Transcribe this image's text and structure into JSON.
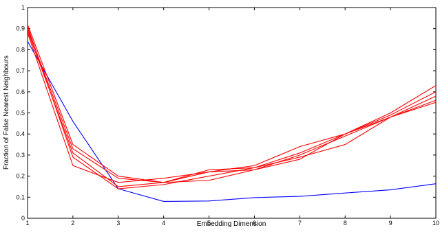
{
  "chart_data": {
    "type": "line",
    "title": "",
    "xlabel": "Embedding Dimension",
    "ylabel": "Fraction of False Nearest Neighbours",
    "xlim": [
      1,
      10
    ],
    "ylim": [
      0,
      1
    ],
    "x_ticks": [
      1,
      2,
      3,
      4,
      5,
      6,
      7,
      8,
      9,
      10
    ],
    "y_ticks": [
      0,
      0.1,
      0.2,
      0.3,
      0.4,
      0.5,
      0.6,
      0.7,
      0.8,
      0.9,
      1
    ],
    "x_tick_labels": [
      "1",
      "2",
      "3",
      "4",
      "5",
      "6",
      "7",
      "8",
      "9",
      "10"
    ],
    "y_tick_labels": [
      "0",
      "0.1",
      "0.2",
      "0.3",
      "0.4",
      "0.5",
      "0.6",
      "0.7",
      "0.8",
      "0.9",
      "1"
    ],
    "grid": false,
    "legend": "none",
    "x": [
      1,
      2,
      3,
      4,
      5,
      6,
      7,
      8,
      9,
      10
    ],
    "series": [
      {
        "color": "#0000ff",
        "values": [
          0.84,
          0.46,
          0.14,
          0.08,
          0.082,
          0.098,
          0.104,
          0.12,
          0.135,
          0.164
        ]
      },
      {
        "color": "#ff0000",
        "values": [
          0.92,
          0.35,
          0.2,
          0.17,
          0.23,
          0.24,
          0.31,
          0.4,
          0.5,
          0.63
        ]
      },
      {
        "color": "#ff0000",
        "values": [
          0.9,
          0.33,
          0.19,
          0.17,
          0.22,
          0.25,
          0.34,
          0.4,
          0.48,
          0.55
        ]
      },
      {
        "color": "#ff0000",
        "values": [
          0.89,
          0.31,
          0.15,
          0.17,
          0.18,
          0.23,
          0.3,
          0.39,
          0.48,
          0.56
        ]
      },
      {
        "color": "#ff0000",
        "values": [
          0.91,
          0.29,
          0.14,
          0.16,
          0.2,
          0.24,
          0.29,
          0.35,
          0.48,
          0.58
        ]
      },
      {
        "color": "#ff0000",
        "values": [
          0.88,
          0.25,
          0.17,
          0.19,
          0.22,
          0.23,
          0.28,
          0.4,
          0.49,
          0.6
        ]
      }
    ]
  }
}
